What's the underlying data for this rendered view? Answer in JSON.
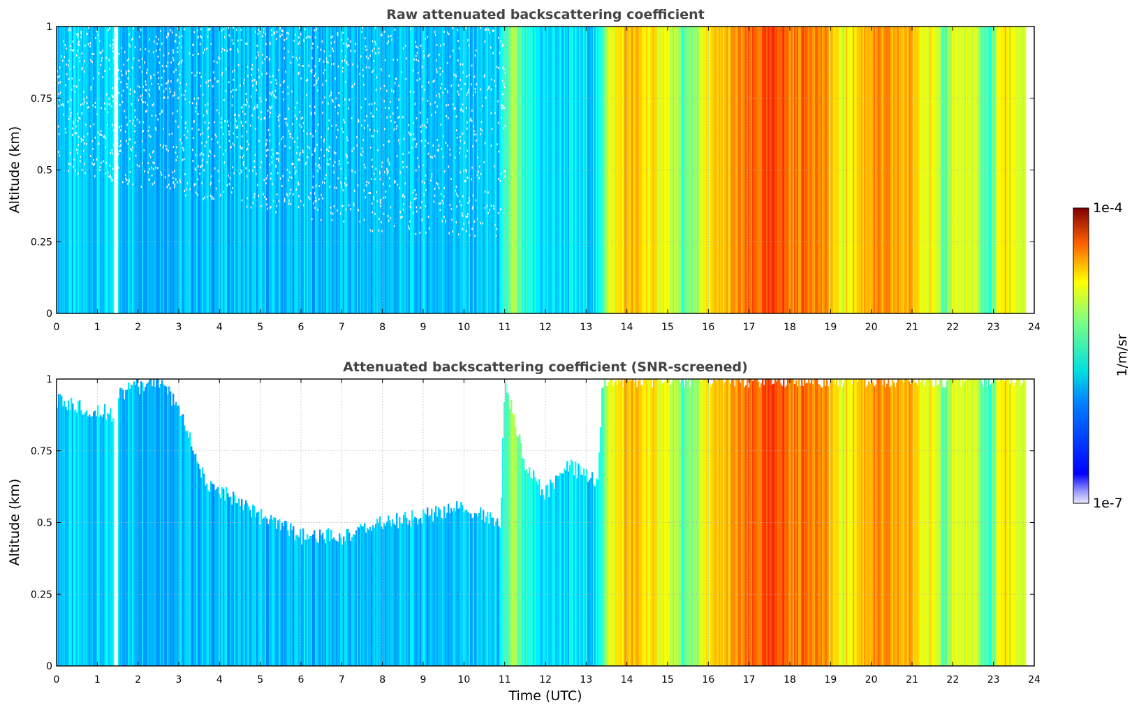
{
  "chart_data": [
    {
      "type": "heatmap",
      "title": "Raw attenuated backscattering coefficient",
      "xlabel": "",
      "ylabel": "Altitude (km)",
      "xlim": [
        0,
        24
      ],
      "ylim": [
        0,
        1
      ],
      "x_ticks": [
        "0",
        "1",
        "2",
        "3",
        "4",
        "5",
        "6",
        "7",
        "8",
        "9",
        "10",
        "11",
        "12",
        "13",
        "14",
        "15",
        "16",
        "17",
        "18",
        "19",
        "20",
        "21",
        "22",
        "23",
        "24"
      ],
      "y_ticks": [
        "0",
        "0.25",
        "0.5",
        "0.75",
        "1"
      ],
      "grid": true,
      "data_gap": [
        1.4,
        1.5
      ],
      "data_end": 23.8,
      "log_value_profile": {
        "times": [
          0,
          1.4,
          1.5,
          3,
          5,
          8,
          10.9,
          11.2,
          11.5,
          12,
          13.3,
          13.5,
          14,
          15,
          15.4,
          16,
          16.5,
          17,
          17.8,
          18,
          18.5,
          19,
          19.2,
          20,
          21,
          21.5,
          21.8,
          22,
          22.5,
          22.9,
          23.2,
          23.8
        ],
        "values": [
          -6.2,
          -6.2,
          -6.2,
          -6.25,
          -6.25,
          -6.25,
          -6.2,
          -5.5,
          -6.0,
          -6.15,
          -6.15,
          -5.4,
          -5.0,
          -5.3,
          -5.8,
          -5.2,
          -5.0,
          -4.8,
          -4.6,
          -4.85,
          -4.7,
          -5.0,
          -5.3,
          -4.9,
          -5.0,
          -5.3,
          -5.8,
          -5.3,
          -5.4,
          -5.9,
          -5.1,
          -5.4
        ]
      },
      "noise_region": {
        "x_range": [
          0,
          11
        ],
        "top_altitude": 1,
        "bottom_altitude_start": 0.5,
        "bottom_altitude_min": 0.27
      }
    },
    {
      "type": "heatmap",
      "title": "Attenuated backscattering coefficient (SNR-screened)",
      "xlabel": "Time (UTC)",
      "ylabel": "Altitude (km)",
      "xlim": [
        0,
        24
      ],
      "ylim": [
        0,
        1
      ],
      "x_ticks": [
        "0",
        "1",
        "2",
        "3",
        "4",
        "5",
        "6",
        "7",
        "8",
        "9",
        "10",
        "11",
        "12",
        "13",
        "14",
        "15",
        "16",
        "17",
        "18",
        "19",
        "20",
        "21",
        "22",
        "23",
        "24"
      ],
      "y_ticks": [
        "0",
        "0.25",
        "0.5",
        "0.75",
        "1"
      ],
      "grid": true,
      "data_gap": [
        1.4,
        1.5
      ],
      "data_end": 23.8,
      "screened_top": {
        "times": [
          0,
          1.4,
          1.5,
          2.5,
          3.0,
          3.7,
          4.5,
          5.0,
          6.0,
          7.0,
          8.0,
          9.0,
          10.0,
          10.9,
          11.0,
          11.5,
          12.0,
          12.5,
          13.3,
          13.4,
          23.8
        ],
        "altitudes": [
          0.92,
          0.88,
          0.95,
          1.0,
          0.9,
          0.62,
          0.58,
          0.52,
          0.45,
          0.45,
          0.5,
          0.52,
          0.55,
          0.5,
          1.0,
          0.7,
          0.6,
          0.7,
          0.65,
          1.0,
          1.0
        ]
      }
    }
  ],
  "colorbar": {
    "max_label": "1e-4",
    "min_label": "1e-7",
    "label": "1/m/sr",
    "log_min": -7,
    "log_max": -4
  },
  "colors": {
    "colormap": "jet",
    "title": "#444444",
    "grid": "#b4b4b4"
  }
}
